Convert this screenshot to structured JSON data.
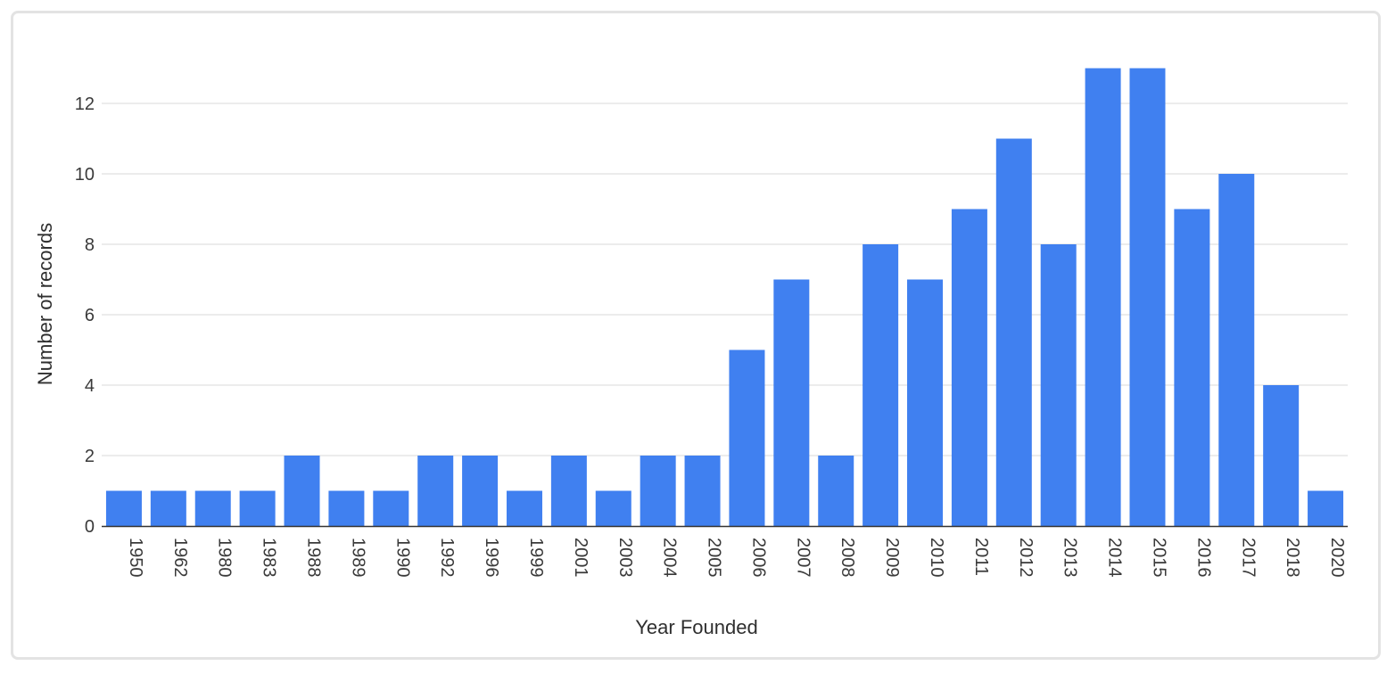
{
  "chart_data": {
    "type": "bar",
    "categories": [
      "1950",
      "1962",
      "1980",
      "1983",
      "1988",
      "1989",
      "1990",
      "1992",
      "1996",
      "1999",
      "2001",
      "2003",
      "2004",
      "2005",
      "2006",
      "2007",
      "2008",
      "2009",
      "2010",
      "2011",
      "2012",
      "2013",
      "2014",
      "2015",
      "2016",
      "2017",
      "2018",
      "2020"
    ],
    "values": [
      1,
      1,
      1,
      1,
      2,
      1,
      1,
      2,
      2,
      1,
      2,
      1,
      2,
      2,
      5,
      7,
      2,
      8,
      7,
      9,
      11,
      8,
      13,
      13,
      9,
      10,
      4,
      1
    ],
    "xlabel": "Year Founded",
    "ylabel": "Number of records",
    "ylim": [
      0,
      13
    ],
    "yticks": [
      0,
      2,
      4,
      6,
      8,
      10,
      12
    ],
    "grid": true,
    "bar_color": "#4080f0"
  }
}
